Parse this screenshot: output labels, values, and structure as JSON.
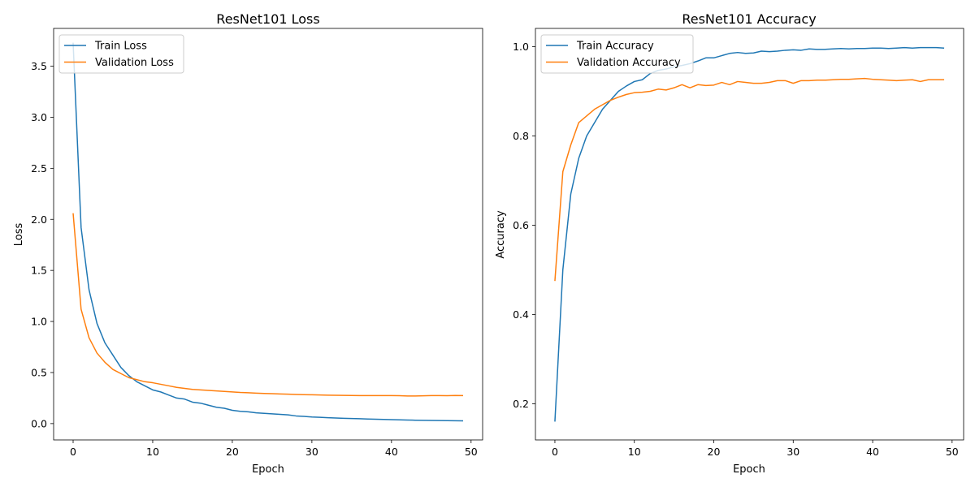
{
  "colors": {
    "train": "#1f77b4",
    "validation": "#ff7f0e"
  },
  "chart_data": [
    {
      "type": "line",
      "title": "ResNet101 Loss",
      "xlabel": "Epoch",
      "ylabel": "Loss",
      "xlim": [
        -2.45,
        51.45
      ],
      "ylim": [
        -0.16,
        3.87
      ],
      "xticks": [
        0,
        10,
        20,
        30,
        40,
        50
      ],
      "yticks": [
        0.0,
        0.5,
        1.0,
        1.5,
        2.0,
        2.5,
        3.0,
        3.5
      ],
      "ytick_labels": [
        "0.0",
        "0.5",
        "1.0",
        "1.5",
        "2.0",
        "2.5",
        "3.0",
        "3.5"
      ],
      "grid": false,
      "legend_position": "top-left",
      "x": [
        0,
        1,
        2,
        3,
        4,
        5,
        6,
        7,
        8,
        9,
        10,
        11,
        12,
        13,
        14,
        15,
        16,
        17,
        18,
        19,
        20,
        21,
        22,
        23,
        24,
        25,
        26,
        27,
        28,
        29,
        30,
        31,
        32,
        33,
        34,
        35,
        36,
        37,
        38,
        39,
        40,
        41,
        42,
        43,
        44,
        45,
        46,
        47,
        48,
        49
      ],
      "series": [
        {
          "name": "Train Loss",
          "color_key": "train",
          "values": [
            3.73,
            1.92,
            1.31,
            0.98,
            0.79,
            0.67,
            0.55,
            0.47,
            0.41,
            0.37,
            0.33,
            0.31,
            0.28,
            0.25,
            0.24,
            0.21,
            0.2,
            0.18,
            0.16,
            0.15,
            0.13,
            0.12,
            0.115,
            0.105,
            0.1,
            0.095,
            0.09,
            0.085,
            0.075,
            0.07,
            0.065,
            0.062,
            0.058,
            0.055,
            0.052,
            0.05,
            0.048,
            0.045,
            0.043,
            0.041,
            0.039,
            0.037,
            0.035,
            0.033,
            0.032,
            0.031,
            0.03,
            0.029,
            0.028,
            0.027
          ]
        },
        {
          "name": "Validation Loss",
          "color_key": "validation",
          "values": [
            2.06,
            1.12,
            0.84,
            0.69,
            0.6,
            0.53,
            0.49,
            0.45,
            0.43,
            0.41,
            0.4,
            0.385,
            0.37,
            0.355,
            0.345,
            0.335,
            0.33,
            0.325,
            0.32,
            0.315,
            0.31,
            0.305,
            0.302,
            0.298,
            0.295,
            0.293,
            0.29,
            0.288,
            0.285,
            0.283,
            0.282,
            0.28,
            0.278,
            0.277,
            0.276,
            0.275,
            0.274,
            0.274,
            0.274,
            0.274,
            0.274,
            0.273,
            0.27,
            0.27,
            0.272,
            0.274,
            0.274,
            0.273,
            0.275,
            0.274
          ]
        }
      ]
    },
    {
      "type": "line",
      "title": "ResNet101 Accuracy",
      "xlabel": "Epoch",
      "ylabel": "Accuracy",
      "xlim": [
        -2.45,
        51.45
      ],
      "ylim": [
        0.119,
        1.041
      ],
      "xticks": [
        0,
        10,
        20,
        30,
        40,
        50
      ],
      "yticks": [
        0.2,
        0.4,
        0.6,
        0.8,
        1.0
      ],
      "ytick_labels": [
        "0.2",
        "0.4",
        "0.6",
        "0.8",
        "1.0"
      ],
      "grid": false,
      "legend_position": "top-left",
      "x": [
        0,
        1,
        2,
        3,
        4,
        5,
        6,
        7,
        8,
        9,
        10,
        11,
        12,
        13,
        14,
        15,
        16,
        17,
        18,
        19,
        20,
        21,
        22,
        23,
        24,
        25,
        26,
        27,
        28,
        29,
        30,
        31,
        32,
        33,
        34,
        35,
        36,
        37,
        38,
        39,
        40,
        41,
        42,
        43,
        44,
        45,
        46,
        47,
        48,
        49
      ],
      "series": [
        {
          "name": "Train Accuracy",
          "color_key": "train",
          "values": [
            0.16,
            0.5,
            0.67,
            0.75,
            0.8,
            0.83,
            0.86,
            0.88,
            0.9,
            0.912,
            0.922,
            0.926,
            0.94,
            0.947,
            0.95,
            0.955,
            0.958,
            0.962,
            0.968,
            0.975,
            0.975,
            0.98,
            0.985,
            0.987,
            0.985,
            0.986,
            0.99,
            0.989,
            0.99,
            0.992,
            0.993,
            0.992,
            0.995,
            0.994,
            0.994,
            0.995,
            0.996,
            0.995,
            0.996,
            0.996,
            0.997,
            0.997,
            0.996,
            0.997,
            0.998,
            0.997,
            0.998,
            0.998,
            0.998,
            0.997
          ]
        },
        {
          "name": "Validation Accuracy",
          "color_key": "validation",
          "values": [
            0.475,
            0.72,
            0.78,
            0.83,
            0.845,
            0.86,
            0.87,
            0.88,
            0.887,
            0.893,
            0.897,
            0.898,
            0.9,
            0.905,
            0.903,
            0.908,
            0.915,
            0.908,
            0.915,
            0.913,
            0.914,
            0.92,
            0.915,
            0.922,
            0.92,
            0.918,
            0.918,
            0.92,
            0.924,
            0.924,
            0.918,
            0.924,
            0.924,
            0.925,
            0.925,
            0.926,
            0.927,
            0.927,
            0.928,
            0.929,
            0.927,
            0.926,
            0.925,
            0.924,
            0.925,
            0.926,
            0.922,
            0.926,
            0.926,
            0.926
          ]
        }
      ]
    }
  ]
}
